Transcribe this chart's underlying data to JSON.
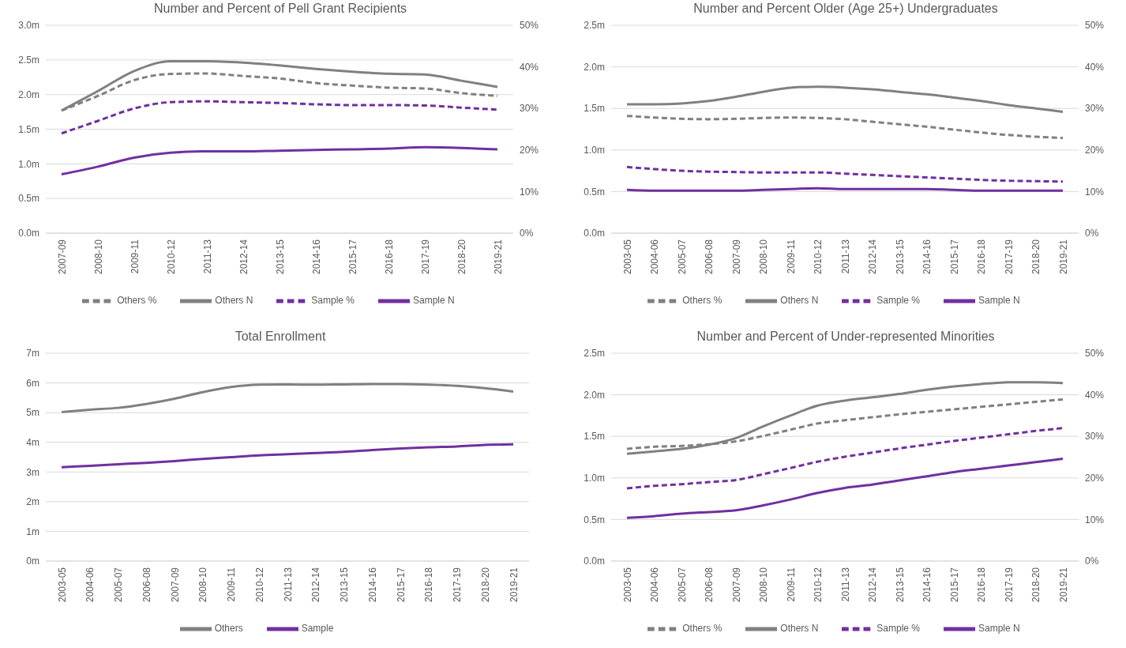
{
  "chart_data": [
    {
      "type": "line",
      "title": "Number and Percent of Pell Grant Recipients",
      "categories": [
        "2007-09",
        "2008-10",
        "2009-11",
        "2010-12",
        "2011-13",
        "2012-14",
        "2013-15",
        "2014-16",
        "2015-17",
        "2016-18",
        "2017-19",
        "2018-20",
        "2019-21"
      ],
      "series": [
        {
          "name": "Sample N",
          "color": "#7030a0",
          "line_style": "solid",
          "values": [
            0.85,
            0.96,
            1.09,
            1.16,
            1.18,
            1.18,
            1.19,
            1.2,
            1.21,
            1.22,
            1.24,
            1.23,
            1.21
          ]
        },
        {
          "name": "Others N",
          "color": "#808080",
          "line_style": "solid",
          "values": [
            1.77,
            2.05,
            2.34,
            2.48,
            2.48,
            2.46,
            2.42,
            2.37,
            2.33,
            2.3,
            2.29,
            2.2,
            2.11
          ]
        },
        {
          "name": "Sample %",
          "color": "#7030a0",
          "line_style": "dashed",
          "axis": "y2",
          "values": [
            24,
            27,
            30,
            31.5,
            31.7,
            31.5,
            31.3,
            31,
            30.8,
            30.8,
            30.7,
            30.2,
            29.7
          ]
        },
        {
          "name": "Others %",
          "color": "#808080",
          "line_style": "dashed",
          "axis": "y2",
          "values": [
            29.5,
            33,
            36.8,
            38.3,
            38.4,
            37.8,
            37.2,
            36.1,
            35.5,
            35,
            34.8,
            33.7,
            33
          ]
        }
      ],
      "ylim": [
        0,
        3
      ],
      "yticks": [
        {
          "value": 0,
          "label": "0.0m"
        },
        {
          "value": 0.5,
          "label": "0.5m"
        },
        {
          "value": 1,
          "label": "1.0m"
        },
        {
          "value": 1.5,
          "label": "1.5m"
        },
        {
          "value": 2,
          "label": "2.0m"
        },
        {
          "value": 2.5,
          "label": "2.5m"
        },
        {
          "value": 3,
          "label": "3.0m"
        }
      ],
      "y2lim": [
        0,
        50
      ],
      "y2ticks": [
        {
          "value": 0,
          "label": "0%"
        },
        {
          "value": 10,
          "label": "10%"
        },
        {
          "value": 20,
          "label": "20%"
        },
        {
          "value": 30,
          "label": "30%"
        },
        {
          "value": 40,
          "label": "40%"
        },
        {
          "value": 50,
          "label": "50%"
        }
      ],
      "grid": "y",
      "legend": "bottom",
      "marker": "none"
    },
    {
      "type": "line",
      "title": "Number and Percent Older (Age 25+) Undergraduates",
      "categories": [
        "2003-05",
        "2004-06",
        "2005-07",
        "2006-08",
        "2007-09",
        "2008-10",
        "2009-11",
        "2010-12",
        "2011-13",
        "2012-14",
        "2013-15",
        "2014-16",
        "2015-17",
        "2016-18",
        "2017-19",
        "2018-20",
        "2019-21"
      ],
      "series": [
        {
          "name": "Sample N",
          "color": "#7030a0",
          "line_style": "solid",
          "values": [
            0.52,
            0.51,
            0.51,
            0.51,
            0.51,
            0.52,
            0.53,
            0.54,
            0.53,
            0.53,
            0.53,
            0.53,
            0.52,
            0.51,
            0.51,
            0.51,
            0.51
          ]
        },
        {
          "name": "Others N",
          "color": "#808080",
          "line_style": "solid",
          "values": [
            1.55,
            1.55,
            1.56,
            1.59,
            1.64,
            1.7,
            1.75,
            1.76,
            1.75,
            1.73,
            1.7,
            1.67,
            1.63,
            1.59,
            1.54,
            1.5,
            1.46
          ]
        },
        {
          "name": "Sample %",
          "color": "#7030a0",
          "line_style": "dashed",
          "axis": "y2",
          "values": [
            15.9,
            15.4,
            15,
            14.8,
            14.7,
            14.6,
            14.6,
            14.6,
            14.3,
            14,
            13.7,
            13.4,
            13.1,
            12.8,
            12.6,
            12.5,
            12.4
          ]
        },
        {
          "name": "Others %",
          "color": "#808080",
          "line_style": "dashed",
          "axis": "y2",
          "values": [
            28.2,
            27.8,
            27.5,
            27.4,
            27.5,
            27.7,
            27.8,
            27.7,
            27.4,
            26.8,
            26.2,
            25.6,
            24.9,
            24.2,
            23.6,
            23.2,
            22.9
          ]
        }
      ],
      "ylim": [
        0,
        2.5
      ],
      "yticks": [
        {
          "value": 0,
          "label": "0.0m"
        },
        {
          "value": 0.5,
          "label": "0.5m"
        },
        {
          "value": 1,
          "label": "1.0m"
        },
        {
          "value": 1.5,
          "label": "1.5m"
        },
        {
          "value": 2,
          "label": "2.0m"
        },
        {
          "value": 2.5,
          "label": "2.5m"
        }
      ],
      "y2lim": [
        0,
        50
      ],
      "y2ticks": [
        {
          "value": 0,
          "label": "0%"
        },
        {
          "value": 10,
          "label": "10%"
        },
        {
          "value": 20,
          "label": "20%"
        },
        {
          "value": 30,
          "label": "30%"
        },
        {
          "value": 40,
          "label": "40%"
        },
        {
          "value": 50,
          "label": "50%"
        }
      ],
      "grid": "y",
      "legend": "bottom",
      "marker": "none"
    },
    {
      "type": "line",
      "title": "Total Enrollment",
      "categories": [
        "2003-05",
        "2004-06",
        "2005-07",
        "2006-08",
        "2007-09",
        "2008-10",
        "2009-11",
        "2010-12",
        "2011-13",
        "2012-14",
        "2013-15",
        "2014-16",
        "2015-17",
        "2016-18",
        "2017-19",
        "2018-20",
        "2019-21"
      ],
      "series": [
        {
          "name": "Sample",
          "color": "#7030a0",
          "line_style": "solid",
          "values": [
            3.16,
            3.21,
            3.26,
            3.31,
            3.37,
            3.44,
            3.5,
            3.56,
            3.6,
            3.64,
            3.68,
            3.74,
            3.79,
            3.83,
            3.86,
            3.91,
            3.93
          ]
        },
        {
          "name": "Others",
          "color": "#808080",
          "line_style": "solid",
          "values": [
            5.02,
            5.1,
            5.16,
            5.29,
            5.47,
            5.69,
            5.86,
            5.94,
            5.95,
            5.94,
            5.95,
            5.96,
            5.96,
            5.94,
            5.9,
            5.82,
            5.71
          ]
        }
      ],
      "ylim": [
        0,
        7
      ],
      "yticks": [
        {
          "value": 0,
          "label": "0m"
        },
        {
          "value": 1,
          "label": "1m"
        },
        {
          "value": 2,
          "label": "2m"
        },
        {
          "value": 3,
          "label": "3m"
        },
        {
          "value": 4,
          "label": "4m"
        },
        {
          "value": 5,
          "label": "5m"
        },
        {
          "value": 6,
          "label": "6m"
        },
        {
          "value": 7,
          "label": "7m"
        }
      ],
      "grid": "y",
      "legend": "bottom",
      "marker": "none"
    },
    {
      "type": "line",
      "title": "Number and Percent of Under-represented Minorities",
      "categories": [
        "2003-05",
        "2004-06",
        "2005-07",
        "2006-08",
        "2007-09",
        "2008-10",
        "2009-11",
        "2010-12",
        "2011-13",
        "2012-14",
        "2013-15",
        "2014-16",
        "2015-17",
        "2016-18",
        "2017-19",
        "2018-20",
        "2019-21"
      ],
      "series": [
        {
          "name": "Sample N",
          "color": "#7030a0",
          "line_style": "solid",
          "values": [
            0.52,
            0.54,
            0.57,
            0.59,
            0.61,
            0.67,
            0.74,
            0.82,
            0.88,
            0.92,
            0.97,
            1.02,
            1.07,
            1.11,
            1.15,
            1.19,
            1.23
          ]
        },
        {
          "name": "Others N",
          "color": "#808080",
          "line_style": "solid",
          "values": [
            1.29,
            1.32,
            1.35,
            1.4,
            1.48,
            1.62,
            1.75,
            1.87,
            1.93,
            1.97,
            2.01,
            2.06,
            2.1,
            2.13,
            2.15,
            2.15,
            2.14
          ]
        },
        {
          "name": "Sample %",
          "color": "#7030a0",
          "line_style": "dashed",
          "axis": "y2",
          "values": [
            17.5,
            18.1,
            18.5,
            19,
            19.5,
            20.9,
            22.4,
            23.9,
            25.1,
            26.1,
            27.1,
            28,
            28.9,
            29.7,
            30.5,
            31.3,
            32
          ]
        },
        {
          "name": "Others %",
          "color": "#808080",
          "line_style": "dashed",
          "axis": "y2",
          "values": [
            27,
            27.5,
            27.7,
            28.1,
            28.8,
            30.1,
            31.6,
            33.1,
            33.9,
            34.6,
            35.3,
            35.9,
            36.5,
            37.1,
            37.7,
            38.3,
            38.9
          ]
        }
      ],
      "ylim": [
        0,
        2.5
      ],
      "yticks": [
        {
          "value": 0,
          "label": "0.0m"
        },
        {
          "value": 0.5,
          "label": "0.5m"
        },
        {
          "value": 1,
          "label": "1.0m"
        },
        {
          "value": 1.5,
          "label": "1.5m"
        },
        {
          "value": 2,
          "label": "2.0m"
        },
        {
          "value": 2.5,
          "label": "2.5m"
        }
      ],
      "y2lim": [
        0,
        50
      ],
      "y2ticks": [
        {
          "value": 0,
          "label": "0%"
        },
        {
          "value": 10,
          "label": "10%"
        },
        {
          "value": 20,
          "label": "20%"
        },
        {
          "value": 30,
          "label": "30%"
        },
        {
          "value": 40,
          "label": "40%"
        },
        {
          "value": 50,
          "label": "50%"
        }
      ],
      "grid": "y",
      "legend": "bottom",
      "marker": "none"
    }
  ]
}
